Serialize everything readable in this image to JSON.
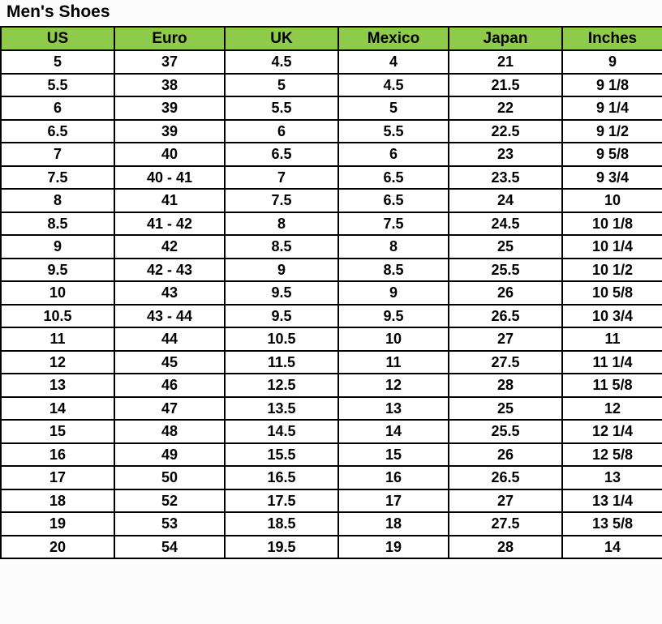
{
  "title": "Men's Shoes",
  "colors": {
    "header_bg": "#8FCB4A",
    "border": "#000000",
    "text": "#000000",
    "row_bg": "#ffffff"
  },
  "table": {
    "columns": [
      "US",
      "Euro",
      "UK",
      "Mexico",
      "Japan",
      "Inches"
    ],
    "rows": [
      [
        "5",
        "37",
        "4.5",
        "4",
        "21",
        "9"
      ],
      [
        "5.5",
        "38",
        "5",
        "4.5",
        "21.5",
        "9 1/8"
      ],
      [
        "6",
        "39",
        "5.5",
        "5",
        "22",
        "9 1/4"
      ],
      [
        "6.5",
        "39",
        "6",
        "5.5",
        "22.5",
        "9 1/2"
      ],
      [
        "7",
        "40",
        "6.5",
        "6",
        "23",
        "9 5/8"
      ],
      [
        "7.5",
        "40 - 41",
        "7",
        "6.5",
        "23.5",
        "9 3/4"
      ],
      [
        "8",
        "41",
        "7.5",
        "6.5",
        "24",
        "10"
      ],
      [
        "8.5",
        "41 - 42",
        "8",
        "7.5",
        "24.5",
        "10 1/8"
      ],
      [
        "9",
        "42",
        "8.5",
        "8",
        "25",
        "10 1/4"
      ],
      [
        "9.5",
        "42 - 43",
        "9",
        "8.5",
        "25.5",
        "10 1/2"
      ],
      [
        "10",
        "43",
        "9.5",
        "9",
        "26",
        "10 5/8"
      ],
      [
        "10.5",
        "43 - 44",
        "9.5",
        "9.5",
        "26.5",
        "10 3/4"
      ],
      [
        "11",
        "44",
        "10.5",
        "10",
        "27",
        "11"
      ],
      [
        "12",
        "45",
        "11.5",
        "11",
        "27.5",
        "11 1/4"
      ],
      [
        "13",
        "46",
        "12.5",
        "12",
        "28",
        "11 5/8"
      ],
      [
        "14",
        "47",
        "13.5",
        "13",
        "25",
        "12"
      ],
      [
        "15",
        "48",
        "14.5",
        "14",
        "25.5",
        "12 1/4"
      ],
      [
        "16",
        "49",
        "15.5",
        "15",
        "26",
        "12 5/8"
      ],
      [
        "17",
        "50",
        "16.5",
        "16",
        "26.5",
        "13"
      ],
      [
        "18",
        "52",
        "17.5",
        "17",
        "27",
        "13 1/4"
      ],
      [
        "19",
        "53",
        "18.5",
        "18",
        "27.5",
        "13 5/8"
      ],
      [
        "20",
        "54",
        "19.5",
        "19",
        "28",
        "14"
      ]
    ]
  }
}
